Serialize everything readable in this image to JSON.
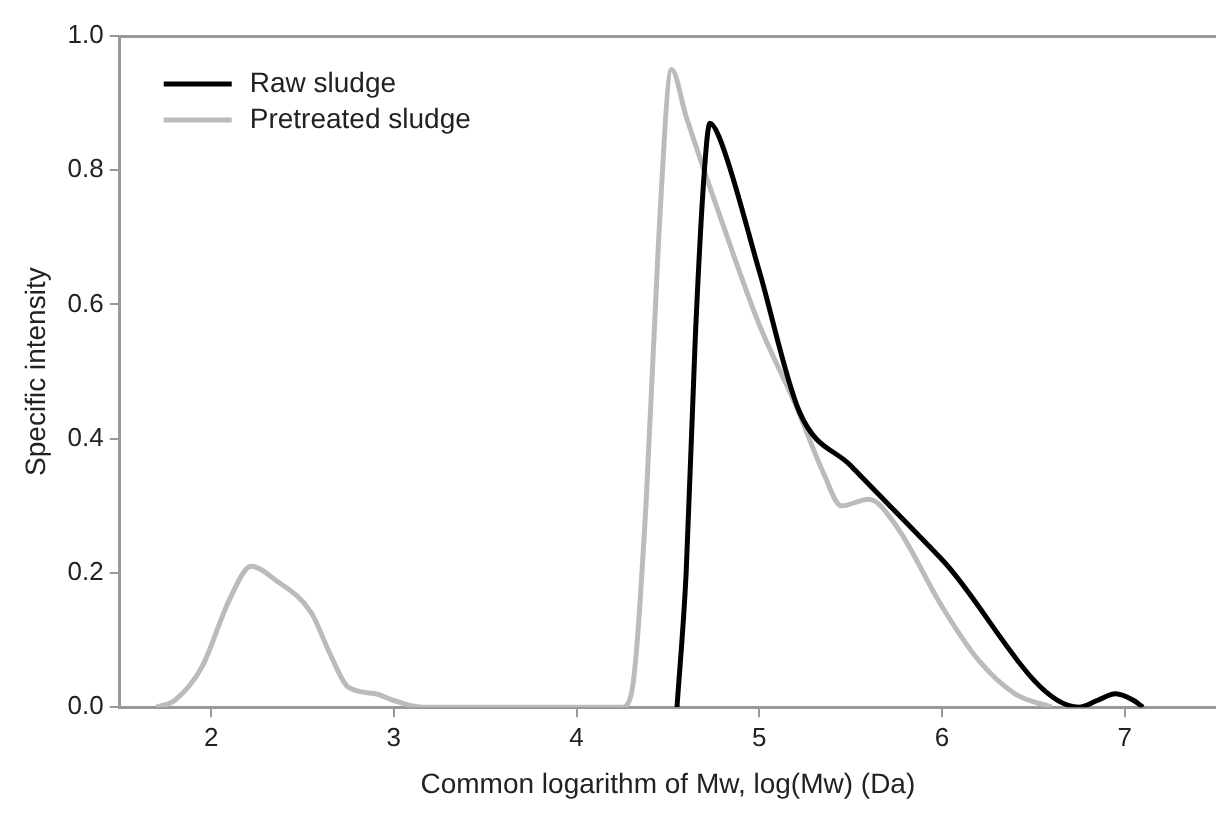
{
  "chart_data": {
    "type": "line",
    "xlabel": "Common logarithm of Mw, log(Mw) (Da)",
    "ylabel": "Specific intensity",
    "xlim": [
      1.5,
      7.5
    ],
    "xticks": [
      2,
      3,
      4,
      5,
      6,
      7
    ],
    "ylim": [
      0,
      1.0
    ],
    "yticks": [
      {
        "value": 0,
        "label": "0.0"
      },
      {
        "value": 0.2,
        "label": "0.2"
      },
      {
        "value": 0.4,
        "label": "0.4"
      },
      {
        "value": 0.6,
        "label": "0.6"
      },
      {
        "value": 0.8,
        "label": "0.8"
      },
      {
        "value": 1.0,
        "label": "1.0"
      }
    ],
    "grid": false,
    "legend": "top left",
    "marker": "none",
    "line_style": "solid",
    "series": [
      {
        "name": "Raw sludge",
        "color": "#000000",
        "x": [
          4.55,
          4.6,
          4.65,
          4.7,
          4.73,
          4.78,
          5.0,
          5.22,
          5.5,
          6.0,
          6.75,
          6.85,
          6.95,
          7.05,
          7.1
        ],
        "values": [
          0,
          0.2,
          0.55,
          0.8,
          0.87,
          0.85,
          0.65,
          0.44,
          0.36,
          0.22,
          0,
          0.01,
          0.02,
          0.01,
          0
        ]
      },
      {
        "name": "Pretreated sludge",
        "color": "#bbbbbb",
        "x": [
          1.7,
          1.8,
          1.95,
          2.1,
          2.22,
          2.35,
          2.55,
          2.65,
          2.75,
          2.9,
          3.0,
          3.15,
          4.25,
          4.3,
          4.38,
          4.45,
          4.52,
          4.6,
          4.8,
          5.0,
          5.2,
          5.35,
          5.45,
          5.6,
          5.75,
          6.0,
          6.2,
          6.4,
          6.6
        ],
        "values": [
          0,
          0.01,
          0.06,
          0.16,
          0.21,
          0.19,
          0.14,
          0.08,
          0.03,
          0.02,
          0.01,
          0,
          0,
          0.02,
          0.3,
          0.7,
          0.95,
          0.88,
          0.72,
          0.57,
          0.45,
          0.35,
          0.3,
          0.31,
          0.27,
          0.15,
          0.07,
          0.02,
          0
        ]
      }
    ]
  }
}
